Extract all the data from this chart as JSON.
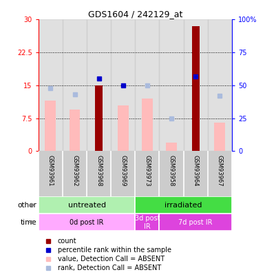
{
  "title": "GDS1604 / 242129_at",
  "samples": [
    "GSM93961",
    "GSM93962",
    "GSM93968",
    "GSM93969",
    "GSM93973",
    "GSM93958",
    "GSM93964",
    "GSM93967"
  ],
  "count_values": [
    0,
    0,
    15.0,
    0,
    0,
    0,
    28.5,
    0
  ],
  "percentile_rank_idx": [
    2,
    3,
    6
  ],
  "percentile_rank_vals": [
    55,
    50,
    57
  ],
  "value_absent": [
    11.5,
    9.5,
    null,
    10.5,
    12.0,
    2.0,
    null,
    6.5
  ],
  "rank_absent_idx": [
    0,
    1,
    4,
    5,
    7
  ],
  "rank_absent_vals": [
    48,
    43,
    50,
    25,
    42
  ],
  "ylim_left": [
    0,
    30
  ],
  "ylim_right": [
    0,
    100
  ],
  "yticks_left": [
    0,
    7.5,
    15,
    22.5,
    30
  ],
  "yticks_right": [
    0,
    25,
    50,
    75,
    100
  ],
  "ytick_labels_left": [
    "0",
    "7.5",
    "15",
    "22.5",
    "30"
  ],
  "ytick_labels_right": [
    "0",
    "25",
    "50",
    "75",
    "100%"
  ],
  "group_other": [
    {
      "label": "untreated",
      "start": 0,
      "end": 4,
      "color": "#b0f0b0"
    },
    {
      "label": "irradiated",
      "start": 4,
      "end": 8,
      "color": "#44dd44"
    }
  ],
  "group_time": [
    {
      "label": "0d post IR",
      "start": 0,
      "end": 4,
      "color": "#ffaaff"
    },
    {
      "label": "3d post\nIR",
      "start": 4,
      "end": 5,
      "color": "#dd44dd"
    },
    {
      "label": "7d post IR",
      "start": 5,
      "end": 8,
      "color": "#dd44dd"
    }
  ],
  "bar_color": "#990000",
  "absent_value_color": "#ffbbbb",
  "absent_rank_color": "#aabbdd",
  "percentile_color": "#0000cc",
  "bg_color": "#cccccc",
  "legend_items": [
    {
      "label": "count",
      "color": "#990000"
    },
    {
      "label": "percentile rank within the sample",
      "color": "#0000cc"
    },
    {
      "label": "value, Detection Call = ABSENT",
      "color": "#ffbbbb"
    },
    {
      "label": "rank, Detection Call = ABSENT",
      "color": "#aabbdd"
    }
  ]
}
